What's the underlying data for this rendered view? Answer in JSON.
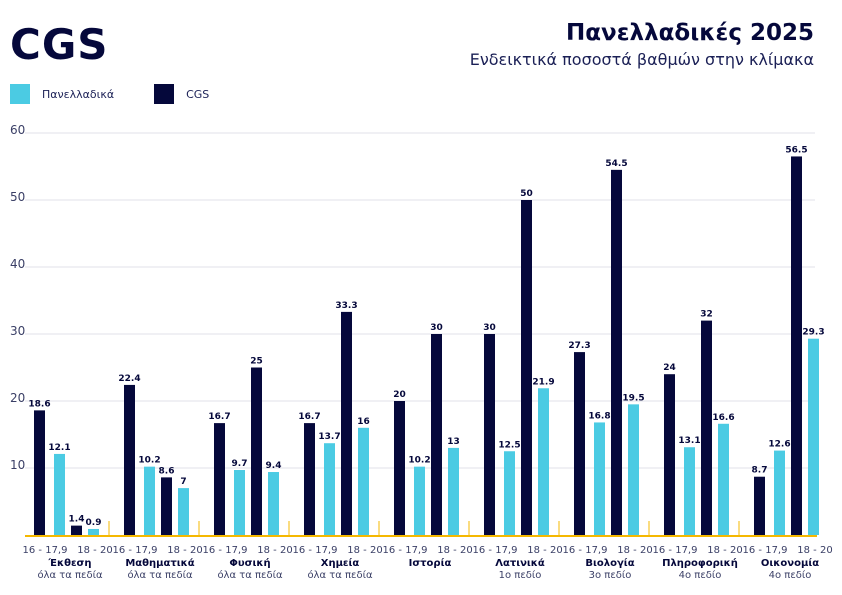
{
  "header": {
    "logo": "CGS",
    "title": "Πανελλαδικές 2025",
    "subtitle": "Ενδεικτικά ποσοστά βαθμών στην κλίμακα"
  },
  "colors": {
    "panellinia": "#4bcbe3",
    "cgs": "#05083b",
    "axis": "#f5b800",
    "grid": "#ebebf0"
  },
  "legend": [
    {
      "label": "Πανελλαδικά",
      "color": "#4bcbe3"
    },
    {
      "label": "CGS",
      "color": "#05083b"
    }
  ],
  "chart_data": {
    "type": "bar",
    "title": "Πανελλαδικές 2025",
    "subtitle": "Ενδεικτικά ποσοστά βαθμών στην κλίμακα",
    "xlabel": "",
    "ylabel": "",
    "ylim": [
      0,
      60
    ],
    "yticks": [
      10,
      20,
      30,
      40,
      50,
      60
    ],
    "grid": true,
    "legend_position": "top-left",
    "ranges": [
      "16 - 17,9",
      "18 - 20"
    ],
    "groups": [
      {
        "subject": "Έκθεση",
        "field": "όλα τα πεδία",
        "values": {
          "16 - 17,9": {
            "CGS": 18.6,
            "Πανελλαδικά": 12.1
          },
          "18 - 20": {
            "CGS": 1.4,
            "Πανελλαδικά": 0.9
          }
        }
      },
      {
        "subject": "Μαθηματικά",
        "field": "όλα τα πεδία",
        "values": {
          "16 - 17,9": {
            "CGS": 22.4,
            "Πανελλαδικά": 10.2
          },
          "18 - 20": {
            "CGS": 8.6,
            "Πανελλαδικά": 7
          }
        }
      },
      {
        "subject": "Φυσική",
        "field": "όλα τα πεδία",
        "values": {
          "16 - 17,9": {
            "CGS": 16.7,
            "Πανελλαδικά": 9.7
          },
          "18 - 20": {
            "CGS": 25,
            "Πανελλαδικά": 9.4
          }
        }
      },
      {
        "subject": "Χημεία",
        "field": "όλα τα πεδία",
        "values": {
          "16 - 17,9": {
            "CGS": 16.7,
            "Πανελλαδικά": 13.7
          },
          "18 - 20": {
            "CGS": 33.3,
            "Πανελλαδικά": 16
          }
        }
      },
      {
        "subject": "Ιστορία",
        "field": "",
        "values": {
          "16 - 17,9": {
            "CGS": 20,
            "Πανελλαδικά": 10.2
          },
          "18 - 20": {
            "CGS": 30,
            "Πανελλαδικά": 13
          }
        }
      },
      {
        "subject": "Λατινικά",
        "field": "1ο πεδίο",
        "values": {
          "16 - 17,9": {
            "CGS": 30,
            "Πανελλαδικά": 12.5
          },
          "18 - 20": {
            "CGS": 50,
            "Πανελλαδικά": 21.9
          }
        }
      },
      {
        "subject": "Βιολογία",
        "field": "3ο πεδίο",
        "values": {
          "16 - 17,9": {
            "CGS": 27.3,
            "Πανελλαδικά": 16.8
          },
          "18 - 20": {
            "CGS": 54.5,
            "Πανελλαδικά": 19.5
          }
        }
      },
      {
        "subject": "Πληροφορική",
        "field": "4ο πεδίο",
        "values": {
          "16 - 17,9": {
            "CGS": 24,
            "Πανελλαδικά": 13.1
          },
          "18 - 20": {
            "CGS": 32,
            "Πανελλαδικά": 16.6
          }
        }
      },
      {
        "subject": "Οικονομία",
        "field": "4ο πεδίο",
        "values": {
          "16 - 17,9": {
            "CGS": 8.7,
            "Πανελλαδικά": 12.6
          },
          "18 - 20": {
            "CGS": 56.5,
            "Πανελλαδικά": 29.3
          }
        }
      }
    ]
  }
}
